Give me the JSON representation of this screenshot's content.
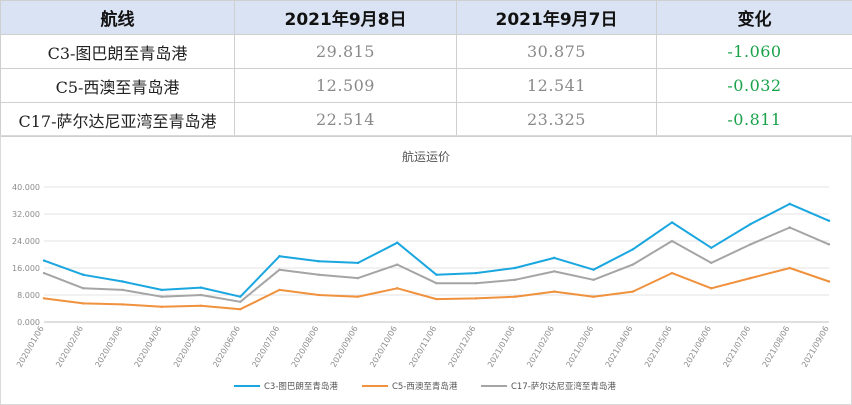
{
  "table": {
    "headers": [
      "航线",
      "2021年9月8日",
      "2021年9月7日",
      "变化"
    ],
    "rows": [
      {
        "route": "C3-图巴朗至青岛港",
        "sep8": "29.815",
        "sep7": "30.875",
        "change": "-1.060"
      },
      {
        "route": "C5-西澳至青岛港",
        "sep8": "12.509",
        "sep7": "12.541",
        "change": "-0.032"
      },
      {
        "route": "C17-萨尔达尼亚湾至青岛港",
        "sep8": "22.514",
        "sep7": "23.325",
        "change": "-0.811"
      }
    ]
  },
  "chart_data": {
    "type": "line",
    "title": "航运运价",
    "ylim": [
      0,
      40
    ],
    "yticks": [
      "0.000",
      "8.000",
      "16.000",
      "24.000",
      "32.000",
      "40.000"
    ],
    "x": [
      "2020/01/06",
      "2020/02/06",
      "2020/03/06",
      "2020/04/06",
      "2020/05/06",
      "2020/06/06",
      "2020/07/06",
      "2020/08/06",
      "2020/09/06",
      "2020/10/06",
      "2020/11/06",
      "2020/12/06",
      "2021/01/06",
      "2021/02/06",
      "2021/03/06",
      "2021/04/06",
      "2021/05/06",
      "2021/06/06",
      "2021/07/06",
      "2021/08/06",
      "2021/09/06"
    ],
    "legend_position": "bottom",
    "series": [
      {
        "name": "C3-图巴朗至青岛港",
        "color": "#1aa6df",
        "values": [
          18.2,
          14.0,
          12.0,
          9.5,
          10.2,
          7.5,
          19.5,
          18.0,
          17.5,
          23.5,
          14.0,
          14.5,
          16.0,
          19.0,
          15.5,
          21.5,
          29.5,
          22.0,
          29.0,
          35.0,
          30.0
        ]
      },
      {
        "name": "C5-西澳至青岛港",
        "color": "#f0913d",
        "values": [
          7.0,
          5.5,
          5.2,
          4.5,
          4.8,
          3.8,
          9.5,
          8.0,
          7.5,
          10.0,
          6.8,
          7.0,
          7.5,
          9.0,
          7.5,
          9.0,
          14.5,
          10.0,
          13.0,
          16.0,
          12.0
        ]
      },
      {
        "name": "C17-萨尔达尼亚湾至青岛港",
        "color": "#a5a5a5",
        "values": [
          14.5,
          10.0,
          9.5,
          7.5,
          8.0,
          6.0,
          15.5,
          14.0,
          13.0,
          17.0,
          11.5,
          11.5,
          12.5,
          15.0,
          12.5,
          17.0,
          24.0,
          17.5,
          23.0,
          28.0,
          23.0
        ]
      }
    ]
  }
}
